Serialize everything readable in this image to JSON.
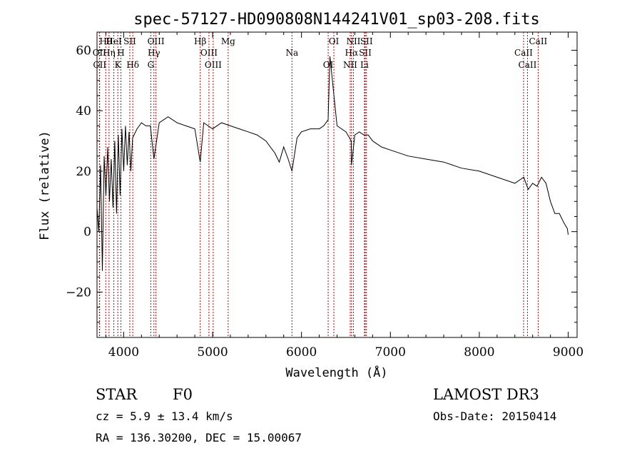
{
  "chart_data": {
    "type": "line",
    "title": "spec-57127-HD090808N144241V01_sp03-208.fits",
    "xlabel": "Wavelength (Å)",
    "ylabel": "Flux (relative)",
    "xlim": [
      3700,
      9100
    ],
    "ylim": [
      -35,
      66
    ],
    "xticks": [
      4000,
      5000,
      6000,
      7000,
      8000,
      9000
    ],
    "yticks": [
      -20,
      0,
      20,
      40,
      60
    ],
    "x_tick_labels": [
      "4000",
      "5000",
      "6000",
      "7000",
      "8000",
      "9000"
    ],
    "y_tick_labels": [
      "−20",
      "0",
      "20",
      "40",
      "60"
    ],
    "series": [
      {
        "name": "flux",
        "x": [
          3700,
          3720,
          3740,
          3760,
          3780,
          3800,
          3820,
          3840,
          3860,
          3880,
          3900,
          3920,
          3940,
          3960,
          3980,
          4000,
          4020,
          4040,
          4060,
          4080,
          4100,
          4150,
          4200,
          4250,
          4300,
          4340,
          4400,
          4500,
          4600,
          4700,
          4800,
          4861,
          4900,
          5000,
          5100,
          5200,
          5300,
          5400,
          5500,
          5600,
          5700,
          5750,
          5800,
          5850,
          5893,
          5950,
          6000,
          6100,
          6200,
          6250,
          6300,
          6320,
          6400,
          6500,
          6560,
          6563,
          6600,
          6650,
          6700,
          6750,
          6800,
          6900,
          7000,
          7200,
          7400,
          7600,
          7800,
          8000,
          8200,
          8400,
          8500,
          8550,
          8600,
          8650,
          8700,
          8750,
          8800,
          8850,
          8900,
          8950,
          8990,
          9000
        ],
        "values": [
          8,
          0,
          22,
          -13,
          25,
          12,
          28,
          10,
          24,
          8,
          30,
          6,
          32,
          12,
          34,
          20,
          35,
          22,
          33,
          20,
          31,
          34,
          36,
          35,
          35,
          24,
          36,
          38,
          36,
          35,
          34,
          23,
          36,
          34,
          36,
          35,
          34,
          33,
          32,
          30,
          26,
          23,
          28,
          24,
          20,
          31,
          33,
          34,
          34,
          35,
          37,
          58,
          35,
          33,
          30,
          22,
          32,
          33,
          32,
          32,
          30,
          28,
          27,
          25,
          24,
          23,
          21,
          20,
          18,
          16,
          18,
          14,
          16,
          15,
          18,
          16,
          10,
          6,
          6,
          3,
          1,
          -1
        ]
      }
    ],
    "lines": [
      {
        "name": "Hθ",
        "x": 3798
      },
      {
        "name": "OII",
        "x": 3727
      },
      {
        "name": "CII",
        "x": 3730
      },
      {
        "name": "HeI",
        "x": 3889
      },
      {
        "name": "Hη",
        "x": 3835
      },
      {
        "name": "K",
        "x": 3934
      },
      {
        "name": "SII",
        "x": 4069
      },
      {
        "name": "H",
        "x": 3969
      },
      {
        "name": "Hδ",
        "x": 4102
      },
      {
        "name": "OIII",
        "x": 4363
      },
      {
        "name": "Hγ",
        "x": 4340
      },
      {
        "name": "G",
        "x": 4305
      },
      {
        "name": "Hβ",
        "x": 4861
      },
      {
        "name": "OIII",
        "x": 4959
      },
      {
        "name": "OIII",
        "x": 5007
      },
      {
        "name": "Mg",
        "x": 5175
      },
      {
        "name": "Na",
        "x": 5893
      },
      {
        "name": "OI",
        "x": 6300
      },
      {
        "name": "OI",
        "x": 6364
      },
      {
        "name": "Hα",
        "x": 6563
      },
      {
        "name": "NII",
        "x": 6548
      },
      {
        "name": "NII",
        "x": 6584
      },
      {
        "name": "SII",
        "x": 6717
      },
      {
        "name": "Li",
        "x": 6708
      },
      {
        "name": "SII",
        "x": 6731
      },
      {
        "name": "CaII",
        "x": 8498
      },
      {
        "name": "CaII",
        "x": 8542
      },
      {
        "name": "CaII",
        "x": 8662
      }
    ]
  },
  "info": {
    "class": "STAR",
    "subclass": "F0",
    "survey": "LAMOST DR3",
    "cz": "cz = 5.9 ± 13.4 km/s",
    "obs_date": "Obs-Date: 20150414",
    "coords": "RA = 136.30200, DEC =  15.00067"
  },
  "colors": {
    "line_marker": "#c00000",
    "spectrum": "#000000"
  }
}
